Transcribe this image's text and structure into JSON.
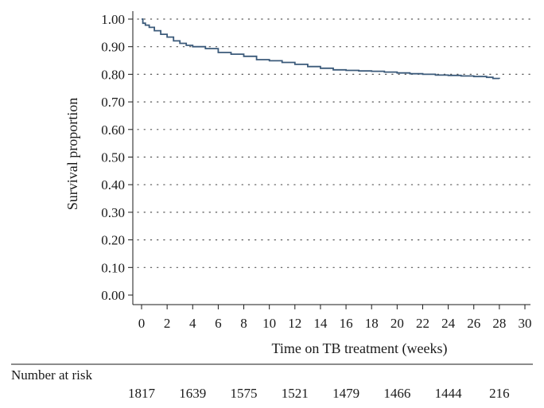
{
  "chart_data": {
    "type": "line",
    "title": "",
    "xlabel": "Time on TB treatment (weeks)",
    "ylabel": "Survival proportion",
    "xlim": [
      0,
      30
    ],
    "ylim": [
      0,
      1
    ],
    "x_ticks": [
      "0",
      "2",
      "4",
      "6",
      "8",
      "10",
      "12",
      "14",
      "16",
      "18",
      "20",
      "22",
      "24",
      "26",
      "28",
      "30"
    ],
    "y_ticks": [
      "0.00",
      "0.10",
      "0.20",
      "0.30",
      "0.40",
      "0.50",
      "0.60",
      "0.70",
      "0.80",
      "0.90",
      "1.00"
    ],
    "grid": "horizontal dotted",
    "series": [
      {
        "x": [
          0,
          0.1,
          0.3,
          0.6,
          1,
          1.5,
          2,
          2.5,
          3,
          3.5,
          4,
          5,
          6,
          7,
          8,
          9,
          10,
          11,
          12,
          13,
          14,
          15,
          16,
          17,
          18,
          19,
          20,
          21,
          22,
          23,
          24,
          25,
          26,
          27,
          27.5,
          28
        ],
        "y": [
          1.0,
          0.985,
          0.978,
          0.97,
          0.958,
          0.945,
          0.935,
          0.921,
          0.912,
          0.905,
          0.9,
          0.893,
          0.879,
          0.873,
          0.865,
          0.853,
          0.849,
          0.843,
          0.836,
          0.828,
          0.822,
          0.816,
          0.814,
          0.812,
          0.811,
          0.808,
          0.805,
          0.802,
          0.8,
          0.797,
          0.796,
          0.794,
          0.792,
          0.789,
          0.785,
          0.784
        ]
      }
    ],
    "risk_table": {
      "label": "Number at risk",
      "times": [
        0,
        4,
        8,
        12,
        16,
        20,
        24,
        28
      ],
      "values": [
        "1817",
        "1639",
        "1575",
        "1521",
        "1479",
        "1466",
        "1444",
        "216"
      ]
    },
    "line_color": "#3b5a7a"
  }
}
